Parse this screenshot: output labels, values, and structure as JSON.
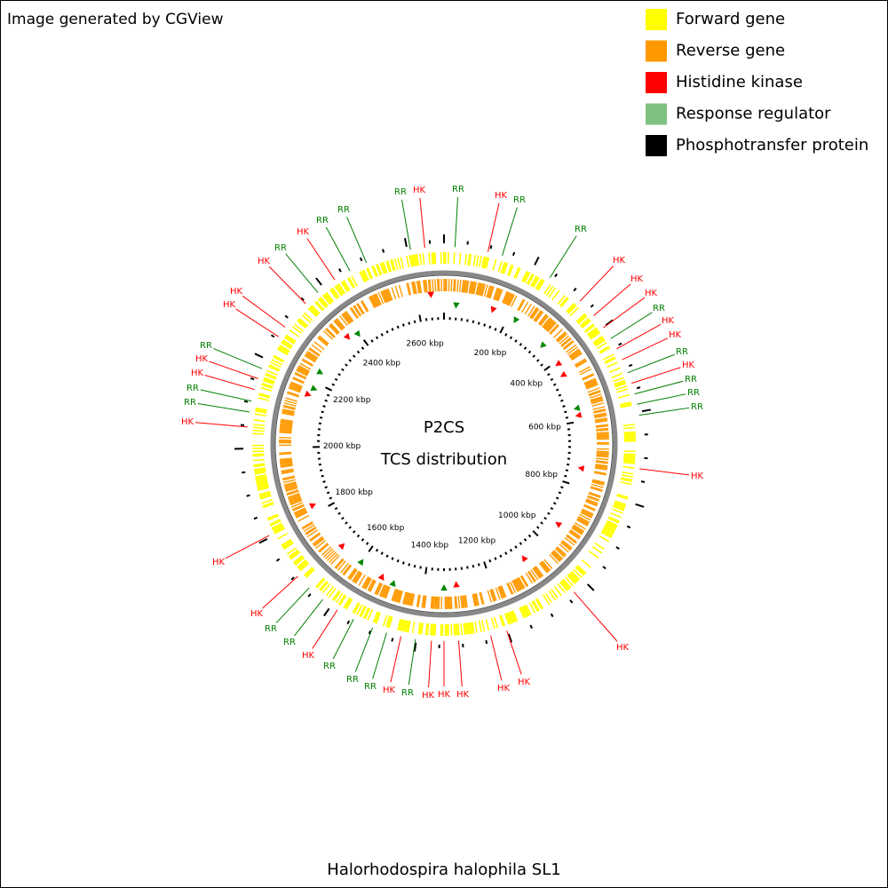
{
  "header": {
    "credit": "Image generated by CGView"
  },
  "legend": [
    {
      "label": "Forward gene",
      "color": "#ffff00"
    },
    {
      "label": "Reverse gene",
      "color": "#ff9900"
    },
    {
      "label": "Histidine kinase",
      "color": "#ff0000"
    },
    {
      "label": "Response regulator",
      "color": "#80c080"
    },
    {
      "label": "Phosphotransfer protein",
      "color": "#000000"
    }
  ],
  "center": {
    "title": "P2CS",
    "subtitle": "TCS distribution"
  },
  "scale_labels": [
    "200 kbp",
    "400 kbp",
    "600 kbp",
    "800 kbp",
    "1000 kbp",
    "1200 kbp",
    "1400 kbp",
    "1600 kbp",
    "1800 kbp",
    "2000 kbp",
    "2200 kbp",
    "2400 kbp",
    "2600 kbp"
  ],
  "callouts": [
    "RR",
    "HK",
    "RR",
    "HK",
    "RR",
    "RR",
    "HK",
    "HK",
    "HK",
    "RR",
    "HK",
    "HK",
    "RR",
    "HK",
    "RR",
    "RR",
    "RR",
    "HK",
    "HK",
    "HK",
    "HK",
    "HK",
    "HK",
    "HK",
    "RR",
    "HK",
    "RR",
    "RR",
    "RR",
    "HK",
    "RR",
    "RR",
    "HK",
    "HK",
    "HK",
    "RR",
    "RR",
    "HK",
    "HK",
    "RR",
    "HK",
    "HK",
    "HK",
    "RR",
    "HK",
    "RR",
    "RR"
  ],
  "footer": {
    "organism": "Halorhodospira halophila SL1"
  }
}
